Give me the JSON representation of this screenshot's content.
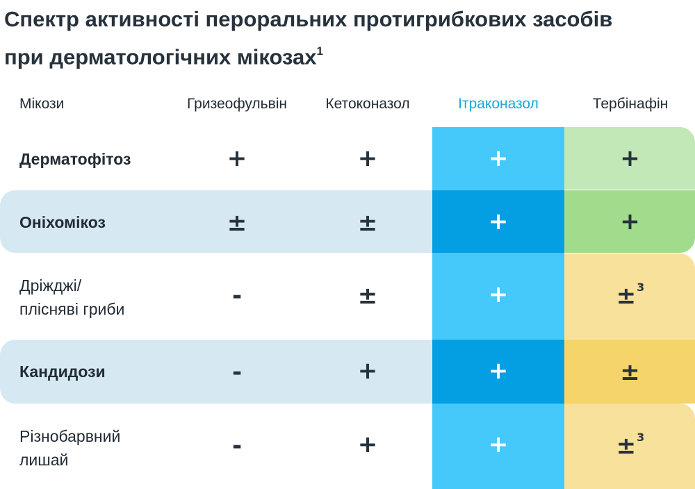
{
  "title": {
    "line1": "Спектр активності пероральних протигрибкових засобів",
    "line2": "при дерматологічних мікозах",
    "footnote": "1"
  },
  "header": {
    "col0": "Мікози",
    "col1": "Гризеофульвін",
    "col2": "Кетоконазол",
    "col3": "Ітраконазол",
    "col4": "Тербінафін"
  },
  "rows": [
    {
      "label1": "Дерматофітоз",
      "label2": "",
      "c1": "+",
      "c2": "+",
      "c3": "+",
      "c4": "+",
      "c4_sup": ""
    },
    {
      "label1": "Оніхомікоз",
      "label2": "",
      "c1": "±",
      "c2": "±",
      "c3": "+",
      "c4": "+",
      "c4_sup": ""
    },
    {
      "label1": "Дріжджі/",
      "label2": "плісняві гриби",
      "c1": "-",
      "c2": "±",
      "c3": "+",
      "c4": "±",
      "c4_sup": "3"
    },
    {
      "label1": "Кандидози",
      "label2": "",
      "c1": "-",
      "c2": "+",
      "c3": "+",
      "c4": "±",
      "c4_sup": ""
    },
    {
      "label1": "Різнобарвний",
      "label2": "лишай",
      "c1": "-",
      "c2": "+",
      "c3": "+",
      "c4": "±",
      "c4_sup": "3"
    }
  ],
  "colors": {
    "itraconazole_light": "#45c9fb",
    "itraconazole_dark": "#039fe2",
    "terbinafine_green_light": "#c1e8b6",
    "terbinafine_green": "#a1db8c",
    "terbinafine_yellow_light": "#f8e19b",
    "terbinafine_yellow": "#f5d46a",
    "row_tint": "#d6e9f2",
    "header_highlight": "#16a9dc"
  }
}
